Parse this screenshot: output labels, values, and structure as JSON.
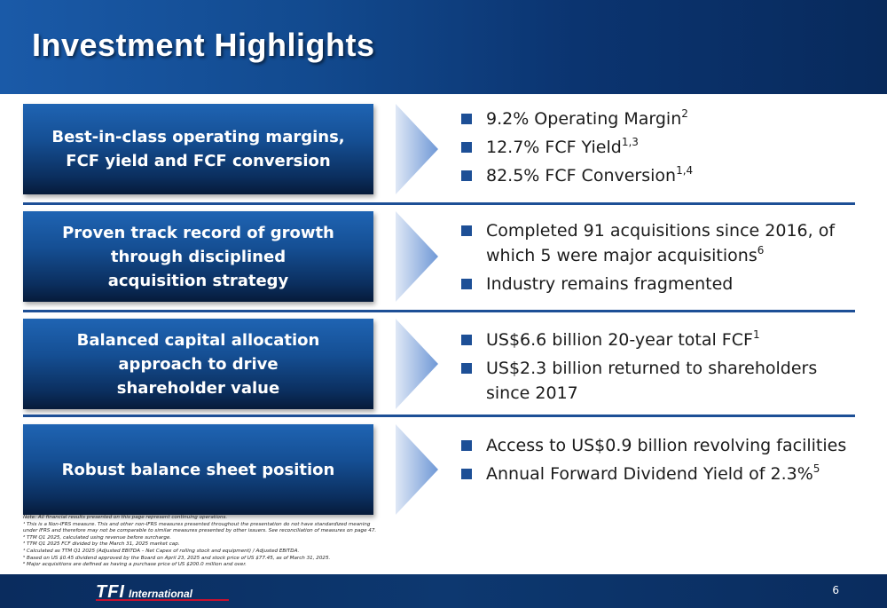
{
  "title": "Investment Highlights",
  "sections": [
    {
      "label_lines": [
        "Best-in-class operating margins,",
        "FCF yield and FCF conversion"
      ],
      "bullets": [
        {
          "text": "9.2% Operating Margin",
          "sup": "2"
        },
        {
          "text": "12.7% FCF Yield",
          "sup": "1,3"
        },
        {
          "text": "82.5% FCF Conversion",
          "sup": "1,4"
        }
      ]
    },
    {
      "label_lines": [
        "Proven track record of growth",
        "through disciplined",
        "acquisition strategy"
      ],
      "bullets": [
        {
          "text": "Completed 91 acquisitions since 2016, of which 5 were major acquisitions",
          "sup": "6"
        },
        {
          "text": "Industry remains fragmented",
          "sup": ""
        }
      ]
    },
    {
      "label_lines": [
        "Balanced capital allocation",
        "approach to drive",
        "shareholder value"
      ],
      "bullets": [
        {
          "text": "US$6.6 billion 20-year total FCF",
          "sup": "1"
        },
        {
          "text": "US$2.3 billion returned to shareholders since 2017",
          "sup": ""
        }
      ]
    },
    {
      "label_lines": [
        "Robust balance sheet position"
      ],
      "bullets": [
        {
          "text": "Access to US$0.9 billion revolving facilities",
          "sup": ""
        },
        {
          "text": "Annual Forward Dividend Yield of 2.3%",
          "sup": "5"
        }
      ]
    }
  ],
  "notes": [
    "Note: All financial results presented on this page represent continuing operations.",
    "¹ This is a Non-IFRS measure. This and other non-IFRS measures presented throughout the presentation do not have standardized meaning",
    "   under IFRS and therefore may not be comparable to similar measures presented by other issuers. See reconciliation of measures on page 47.",
    "² TTM Q1 2025, calculated using revenue before surcharge.",
    "³ TTM Q1 2025 FCF divided by the March 31, 2025 market cap.",
    "⁴ Calculated as TTM Q1 2025 (Adjusted EBITDA – Net Capex of rolling stock and equipment) / Adjusted EBITDA.",
    "⁵ Based on US $0.45 dividend approved by the Board on April 23, 2025 and stock price of US $77.45, as of March 31, 2025.",
    "⁶ Major acquisitions are defined as having a purchase price of US $200.0 million and over."
  ],
  "footer": {
    "logo_main": "TFI",
    "logo_sub": "International",
    "page_number": "6"
  },
  "colors": {
    "brand_blue": "#1d4f96",
    "header_dark": "#082a5c",
    "logo_red": "#c8102e"
  }
}
